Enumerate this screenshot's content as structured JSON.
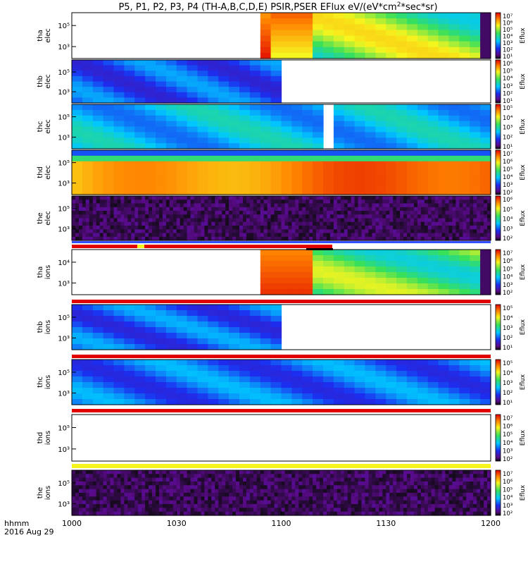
{
  "title_prefix": "P5, P1, P2, P3, P4 (TH-A,B,C,D,E) PSIR,PSER EFlux eV/(eV*cm",
  "title_sup": "2",
  "title_suffix": "*sec*sr)",
  "footer": {
    "x_unit": "hhmm",
    "date": "2016 Aug 29"
  },
  "chart_data": {
    "type": "heatmap",
    "x_ticks": [
      "1000",
      "1030",
      "1100",
      "1130",
      "1200"
    ],
    "x_range_hhmm": [
      "1000",
      "1200"
    ],
    "colorbar_label": "Eflux",
    "panels": [
      {
        "ylabel": [
          "tha",
          "elec"
        ],
        "yticks": [
          "10⁵",
          "10³"
        ],
        "cbar_ticks": [
          "10⁷",
          "10⁶",
          "10⁵",
          "10⁴",
          "10³",
          "10²",
          "10¹"
        ],
        "data_span_min": [
          55,
          120
        ]
      },
      {
        "ylabel": [
          "thb",
          "elec"
        ],
        "yticks": [
          "10⁵",
          "10³"
        ],
        "cbar_ticks": [
          "10⁶",
          "10⁵",
          "10⁴",
          "10³",
          "10²",
          "10¹"
        ],
        "data_span_min": [
          0,
          58
        ]
      },
      {
        "ylabel": [
          "thc",
          "elec"
        ],
        "yticks": [
          "10⁵",
          "10³"
        ],
        "cbar_ticks": [
          "10⁵",
          "10⁴",
          "10³",
          "10²",
          "10¹"
        ],
        "data_span_min": [
          0,
          120
        ]
      },
      {
        "ylabel": [
          "thd",
          "elec"
        ],
        "yticks": [
          "10⁵",
          "10³"
        ],
        "cbar_ticks": [
          "10⁷",
          "10⁶",
          "10⁵",
          "10⁴",
          "10³",
          "10²"
        ],
        "data_span_min": [
          0,
          120
        ]
      },
      {
        "ylabel": [
          "the",
          "elec"
        ],
        "yticks": [
          "10⁵",
          "10³"
        ],
        "cbar_ticks": [
          "10⁶",
          "10⁵",
          "10⁴",
          "10³",
          "10²"
        ],
        "data_span_min": [
          0,
          120
        ]
      },
      {
        "ylabel": [
          "tha",
          "ions"
        ],
        "yticks": [
          "10⁴",
          "10³"
        ],
        "cbar_ticks": [
          "10⁷",
          "10⁶",
          "10⁵",
          "10⁴",
          "10³",
          "10²"
        ],
        "data_span_min": [
          55,
          120
        ]
      },
      {
        "ylabel": [
          "thb",
          "ions"
        ],
        "yticks": [
          "10⁵",
          "10³"
        ],
        "cbar_ticks": [
          "10⁵",
          "10⁴",
          "10³",
          "10²",
          "10¹"
        ],
        "data_span_min": [
          0,
          58
        ]
      },
      {
        "ylabel": [
          "thc",
          "ions"
        ],
        "yticks": [
          "10⁵",
          "10³"
        ],
        "cbar_ticks": [
          "10⁵",
          "10⁴",
          "10³",
          "10²",
          "10¹"
        ],
        "data_span_min": [
          0,
          120
        ]
      },
      {
        "ylabel": [
          "thd",
          "ions"
        ],
        "yticks": [
          "10⁵",
          "10³"
        ],
        "cbar_ticks": [
          "10⁷",
          "10⁶",
          "10⁵",
          "10⁴",
          "10³",
          "10²"
        ],
        "data_span_min": null
      },
      {
        "ylabel": [
          "the",
          "ions"
        ],
        "yticks": [
          "10⁵",
          "10³"
        ],
        "cbar_ticks": [
          "10⁷",
          "10⁶",
          "10⁵",
          "10⁴",
          "10³",
          "10²"
        ],
        "data_span_min": [
          0,
          120
        ]
      }
    ]
  }
}
